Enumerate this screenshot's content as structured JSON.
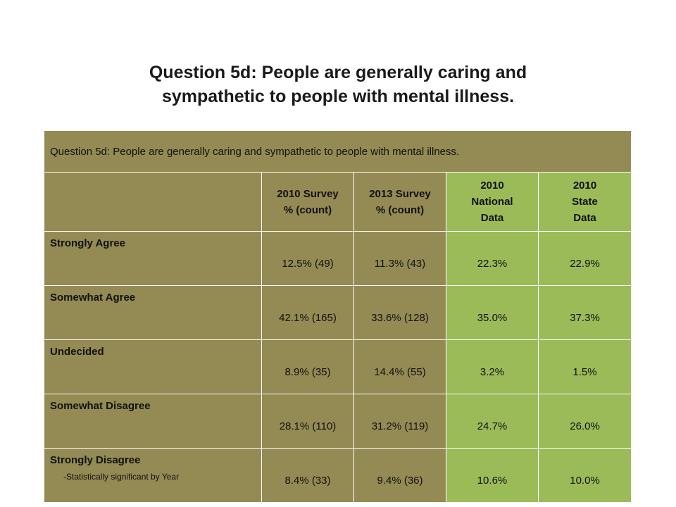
{
  "title_line1": "Question 5d:  People are generally caring and",
  "title_line2": "sympathetic to people with mental illness.",
  "table": {
    "caption": "Question 5d:  People are generally caring and sympathetic to people with mental illness.",
    "headers": [
      {
        "l1": "2010 Survey",
        "l2": "% (count)",
        "l3": ""
      },
      {
        "l1": "2013 Survey",
        "l2": "% (count)",
        "l3": ""
      },
      {
        "l1": "2010",
        "l2": "National",
        "l3": "Data"
      },
      {
        "l1": "2010",
        "l2": "State",
        "l3": "Data"
      }
    ],
    "rows": [
      {
        "label": "Strongly Agree",
        "v2010": "12.5% (49)",
        "v2013": "11.3% (43)",
        "national": "22.3%",
        "state": "22.9%"
      },
      {
        "label": "Somewhat Agree",
        "v2010": "42.1% (165)",
        "v2013": "33.6% (128)",
        "national": "35.0%",
        "state": "37.3%"
      },
      {
        "label": "Undecided",
        "v2010": "8.9% (35)",
        "v2013": "14.4% (55)",
        "national": "3.2%",
        "state": "1.5%"
      },
      {
        "label": "Somewhat Disagree",
        "v2010": "28.1% (110)",
        "v2013": "31.2% (119)",
        "national": "24.7%",
        "state": "26.0%"
      },
      {
        "label": "Strongly Disagree",
        "v2010": "8.4% (33)",
        "v2013": "9.4% (36)",
        "national": "10.6%",
        "state": "10.0%"
      }
    ]
  },
  "footnote": "-Statistically significant by Year",
  "colors": {
    "olive": "#948a54",
    "green": "#9bbb59",
    "significant_text": "#b85a10"
  }
}
